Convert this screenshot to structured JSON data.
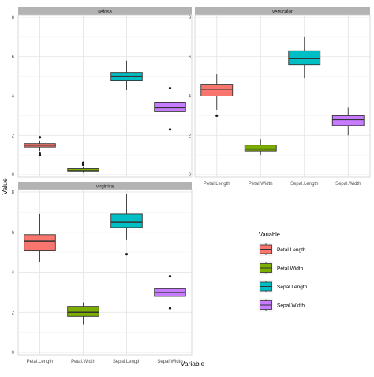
{
  "chart_data": {
    "type": "boxplot",
    "xlabel": "Variable",
    "ylabel": "Value",
    "ylim": [
      0,
      8
    ],
    "yticks": [
      "0",
      "2",
      "4",
      "6",
      "8"
    ],
    "categories": [
      "Petal.Length",
      "Petal.Width",
      "Sepal.Length",
      "Sepal.Width"
    ],
    "colors": [
      "#F8766D",
      "#7CAE00",
      "#00BFC4",
      "#C77CFF"
    ],
    "legend": {
      "title": "Variable",
      "position": "right",
      "items": [
        "Petal.Length",
        "Petal.Width",
        "Sepal.Length",
        "Sepal.Width"
      ]
    },
    "panels": [
      {
        "title": "setosa",
        "boxes": [
          {
            "q1": 1.4,
            "median": 1.5,
            "q3": 1.58,
            "low": 1.2,
            "high": 1.7,
            "outliers": [
              1.0,
              1.1,
              1.9
            ]
          },
          {
            "q1": 0.2,
            "median": 0.2,
            "q3": 0.3,
            "low": 0.1,
            "high": 0.4,
            "outliers": [
              0.5,
              0.6
            ]
          },
          {
            "q1": 4.8,
            "median": 5.0,
            "q3": 5.2,
            "low": 4.3,
            "high": 5.8,
            "outliers": []
          },
          {
            "q1": 3.2,
            "median": 3.4,
            "q3": 3.68,
            "low": 2.9,
            "high": 4.2,
            "outliers": [
              2.3,
              4.4
            ]
          }
        ]
      },
      {
        "title": "versicolor",
        "boxes": [
          {
            "q1": 4.0,
            "median": 4.35,
            "q3": 4.6,
            "low": 3.3,
            "high": 5.1,
            "outliers": [
              3.0
            ]
          },
          {
            "q1": 1.2,
            "median": 1.3,
            "q3": 1.5,
            "low": 1.0,
            "high": 1.8,
            "outliers": []
          },
          {
            "q1": 5.6,
            "median": 5.9,
            "q3": 6.3,
            "low": 4.9,
            "high": 7.0,
            "outliers": []
          },
          {
            "q1": 2.5,
            "median": 2.8,
            "q3": 3.0,
            "low": 2.0,
            "high": 3.4,
            "outliers": []
          }
        ]
      },
      {
        "title": "virginica",
        "boxes": [
          {
            "q1": 5.1,
            "median": 5.55,
            "q3": 5.88,
            "low": 4.5,
            "high": 6.9,
            "outliers": []
          },
          {
            "q1": 1.8,
            "median": 2.0,
            "q3": 2.3,
            "low": 1.4,
            "high": 2.5,
            "outliers": []
          },
          {
            "q1": 6.23,
            "median": 6.5,
            "q3": 6.9,
            "low": 5.6,
            "high": 7.9,
            "outliers": [
              4.9
            ]
          },
          {
            "q1": 2.8,
            "median": 3.0,
            "q3": 3.18,
            "low": 2.5,
            "high": 3.6,
            "outliers": [
              2.2,
              3.8
            ]
          }
        ]
      }
    ]
  }
}
